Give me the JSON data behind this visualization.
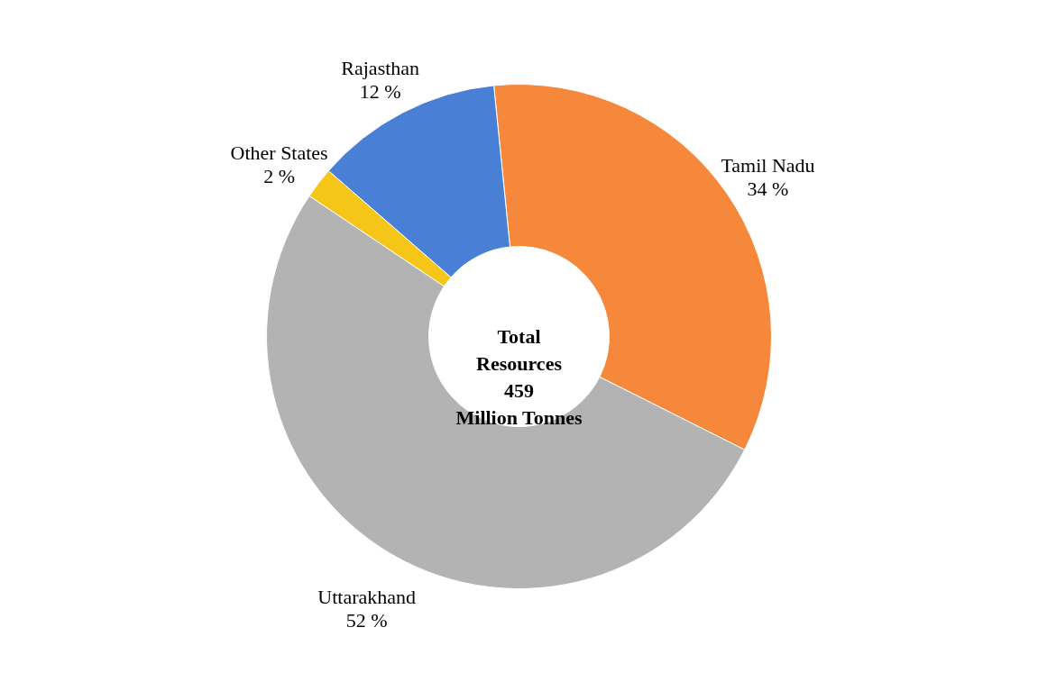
{
  "chart_data": {
    "type": "donut",
    "categories": [
      "Tamil Nadu",
      "Uttarakhand",
      "Other States",
      "Rajasthan"
    ],
    "values": [
      34,
      52,
      2,
      12
    ],
    "colors": [
      "#f5883a",
      "#b3b3b3",
      "#f5c518",
      "#4a7fd6"
    ],
    "value_labels": [
      "34 %",
      "52 %",
      "2 %",
      "12 %"
    ],
    "annotations": [
      "Total\nResources\n459\nMillion Tonnes"
    ]
  }
}
